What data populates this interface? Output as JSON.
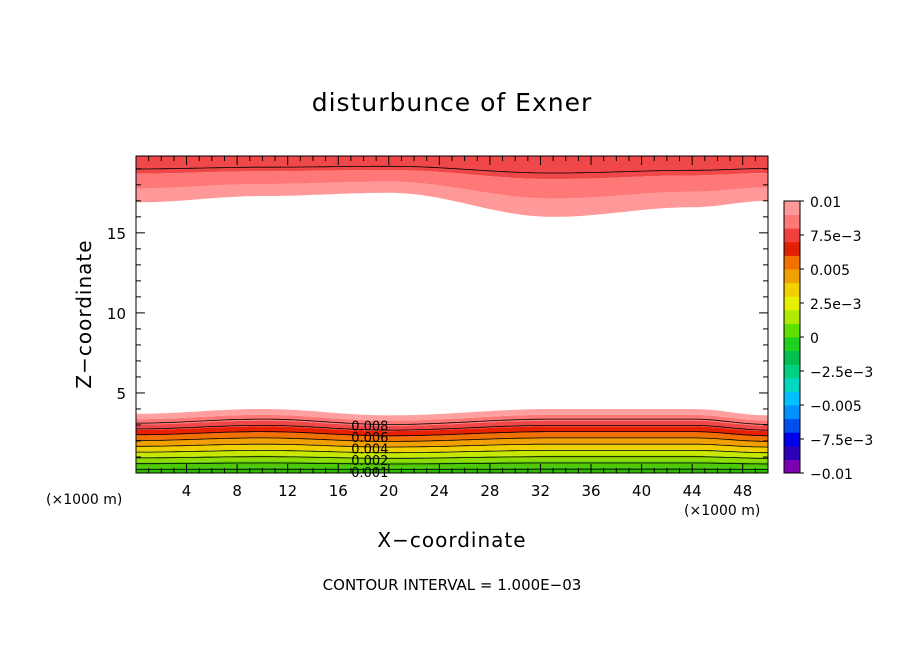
{
  "chart_data": {
    "type": "contour",
    "title": "disturbunce of Exner",
    "xlabel": "X−coordinate",
    "ylabel": "Z−coordinate",
    "x_unit_label": "(×1000 m)",
    "x_unit_label_right": "(×1000 m)",
    "footer": "CONTOUR INTERVAL = 1.000E−03",
    "xlim": [
      0,
      50
    ],
    "ylim": [
      0,
      19.8
    ],
    "x_ticks": [
      4,
      8,
      12,
      16,
      20,
      24,
      28,
      32,
      36,
      40,
      44,
      48
    ],
    "y_ticks": [
      5,
      10,
      15
    ],
    "colorbar": {
      "range": [
        -0.01,
        0.01
      ],
      "labels": [
        "0.01",
        "7.5e−3",
        "0.005",
        "2.5e−3",
        "0",
        "−2.5e−3",
        "−0.005",
        "−7.5e−3",
        "−0.01"
      ],
      "colors_bottom_to_top": [
        "#7a00b0",
        "#2a00b8",
        "#0000e8",
        "#0050f0",
        "#0090ff",
        "#00c0ff",
        "#00d8c0",
        "#00d080",
        "#00c050",
        "#20d020",
        "#60e000",
        "#b0e800",
        "#e8f000",
        "#f0d000",
        "#f0a000",
        "#f07000",
        "#e02000",
        "#f04040",
        "#ff7878",
        "#ff9898"
      ]
    },
    "contour_labels": [
      "0.008",
      "0.006",
      "0.004",
      "0.002",
      "0.001"
    ],
    "contour_interval": 0.001,
    "contour_levels_lower": [
      0.001,
      0.002,
      0.003,
      0.004,
      0.005,
      0.006,
      0.007,
      0.008,
      0.009
    ],
    "lower_layer_top_profile": {
      "x": [
        0,
        10,
        20,
        33,
        44,
        50
      ],
      "z": [
        3.7,
        4.0,
        3.6,
        4.0,
        4.0,
        3.6
      ]
    },
    "upper_layer_bottom_profile": {
      "x": [
        0,
        10,
        20,
        33,
        44,
        50
      ],
      "z": [
        16.9,
        17.3,
        17.5,
        16.0,
        16.6,
        17.0
      ]
    },
    "grid": false
  }
}
